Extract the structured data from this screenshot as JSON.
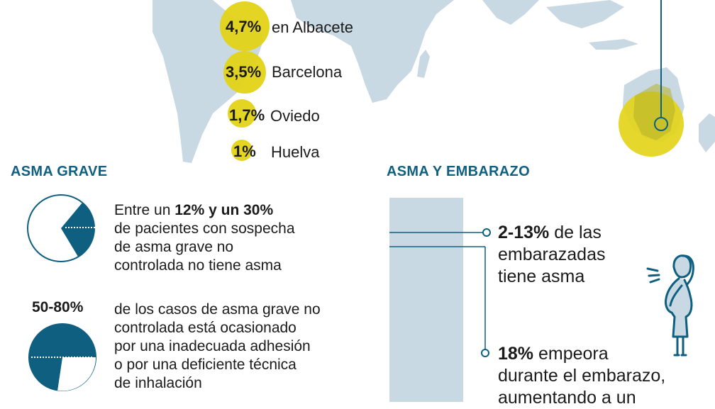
{
  "colors": {
    "accent": "#0e5f80",
    "highlight": "#e3d316",
    "map": "#c8d9e3"
  },
  "cities": [
    {
      "pct": "4,7%",
      "name": "en Albacete"
    },
    {
      "pct": "3,5%",
      "name": "Barcelona"
    },
    {
      "pct": "1,7%",
      "name": "Oviedo"
    },
    {
      "pct": "1%",
      "name": "Huelva"
    }
  ],
  "asma_grave": {
    "title": "ASMA GRAVE",
    "item1": {
      "line1_pre": "Entre un ",
      "line1_bold": "12% y un 30%",
      "line2": "de pacientes con sospecha",
      "line3": "de asma grave no",
      "line4": "controlada no tiene asma"
    },
    "item2": {
      "pct": "50-80%",
      "line1": "de los casos de asma grave no",
      "line2": "controlada está ocasionado",
      "line3": "por una inadecuada adhesión",
      "line4": "o por una deficiente técnica",
      "line5": "de inhalación"
    }
  },
  "embarazo": {
    "title": "ASMA Y EMBARAZO",
    "stat1": {
      "bold": "2-13%",
      "rest": " de las",
      "line2": "embarazadas",
      "line3": "tiene asma"
    },
    "stat2": {
      "bold": "18%",
      "rest": " empeora",
      "line2": "durante el embarazo,",
      "line3": "aumentando a un"
    }
  }
}
